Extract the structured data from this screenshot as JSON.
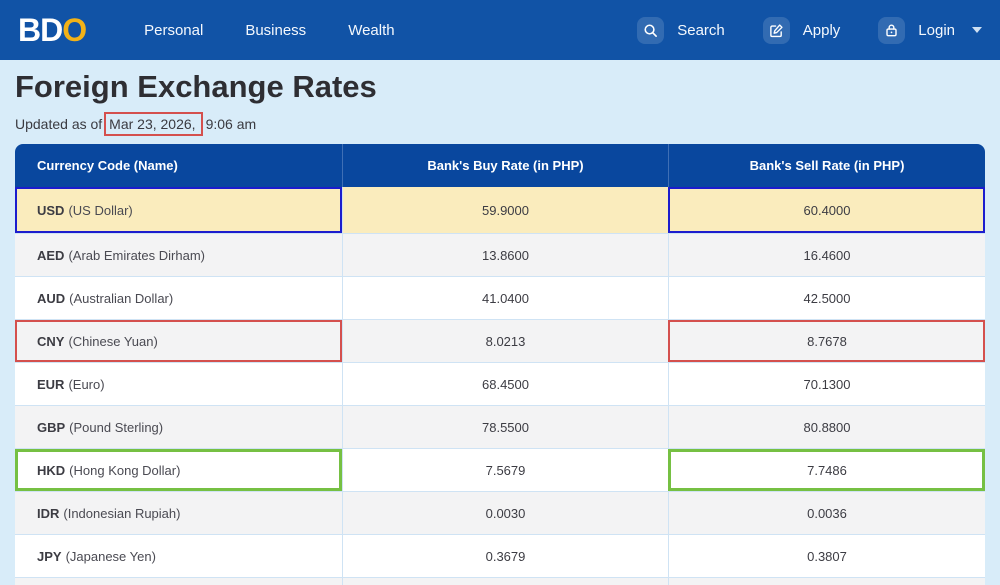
{
  "navbar": {
    "logo": {
      "part1": "BD",
      "part2": "O"
    },
    "links": [
      {
        "label": "Personal"
      },
      {
        "label": "Business"
      },
      {
        "label": "Wealth"
      }
    ],
    "actions": {
      "search_label": "Search",
      "apply_label": "Apply",
      "login_label": "Login"
    }
  },
  "page": {
    "title": "Foreign Exchange Rates",
    "updated_prefix": "Updated as of",
    "updated_date": "Mar 23, 2026,",
    "updated_time": "9:06 am"
  },
  "table": {
    "headers": [
      "Currency Code (Name)",
      "Bank's Buy Rate (in PHP)",
      "Bank's Sell Rate (in PHP)"
    ],
    "rows": [
      {
        "code": "USD",
        "name": "(US Dollar)",
        "buy": "59.9000",
        "sell": "60.4000",
        "shade": "yellow",
        "annotation": "blue"
      },
      {
        "code": "AED",
        "name": "(Arab Emirates Dirham)",
        "buy": "13.8600",
        "sell": "16.4600",
        "shade": "gray",
        "annotation": null
      },
      {
        "code": "AUD",
        "name": "(Australian Dollar)",
        "buy": "41.0400",
        "sell": "42.5000",
        "shade": "white",
        "annotation": null
      },
      {
        "code": "CNY",
        "name": "(Chinese Yuan)",
        "buy": "8.0213",
        "sell": "8.7678",
        "shade": "gray",
        "annotation": "red"
      },
      {
        "code": "EUR",
        "name": "(Euro)",
        "buy": "68.4500",
        "sell": "70.1300",
        "shade": "white",
        "annotation": null
      },
      {
        "code": "GBP",
        "name": "(Pound Sterling)",
        "buy": "78.5500",
        "sell": "80.8800",
        "shade": "gray",
        "annotation": null
      },
      {
        "code": "HKD",
        "name": "(Hong Kong Dollar)",
        "buy": "7.5679",
        "sell": "7.7486",
        "shade": "white",
        "annotation": "green"
      },
      {
        "code": "IDR",
        "name": "(Indonesian Rupiah)",
        "buy": "0.0030",
        "sell": "0.0036",
        "shade": "gray",
        "annotation": null
      },
      {
        "code": "JPY",
        "name": "(Japanese Yen)",
        "buy": "0.3679",
        "sell": "0.3807",
        "shade": "white",
        "annotation": null
      }
    ]
  },
  "colors": {
    "navbar_blue": "#1153a6",
    "table_header_blue": "#09479e",
    "highlight_yellow": "#faecbd",
    "logo_gold": "#f2b218",
    "annotation_red": "#d4504e",
    "annotation_blue": "#1c1ccd",
    "annotation_green": "#76c043",
    "page_background": "#d8ecf9"
  }
}
